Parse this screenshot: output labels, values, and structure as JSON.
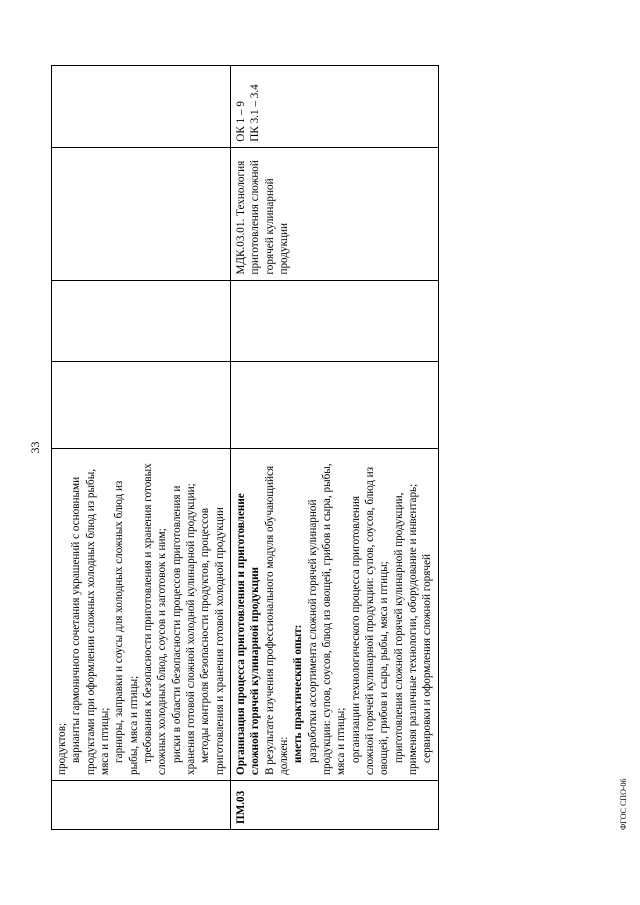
{
  "page_number": "33",
  "footer": "ФГОС СПО-06",
  "row1": {
    "col0": "",
    "col1_lines": [
      "продуктов;",
      "варианты гармоничного сочетания украшений с основными продуктами при оформлении сложных холодных блюд из рыбы, мяса и птицы;",
      "гарниры, заправки и соусы для холодных сложных блюд из рыбы, мяса и птицы;",
      "требования к безопасности приготовления и хранения готовых сложных холодных блюд, соусов и заготовок к ним;",
      "риски в области безопасности процессов приготовления и хранения готовой сложной холодной кулинарной продукции;",
      "методы контроля безопасности продуктов, процессов приготовления и хранения готовой холодной продукции"
    ],
    "col2": "",
    "col3": "",
    "col4": "",
    "col5": ""
  },
  "row2": {
    "col0": "ПМ.03",
    "col1_title": "Организация процесса приготовления и приготовление сложной горячей кулинарной продукции",
    "col1_intro": "В результате изучения профессионального модуля обучающийся должен:",
    "col1_label": "иметь практический опыт:",
    "col1_lines": [
      "разработки ассортимента сложной горячей кулинарной продукции: супов, соусов, блюд из овощей, грибов и сыра, рыбы, мяса и птицы;",
      "организации технологического процесса приготовления сложной горячей кулинарной продукции: супов, соусов, блюд из овощей, грибов и сыра, рыбы, мяса и птицы;",
      "приготовления сложной горячей кулинарной продукции, применяя различные технологии, оборудование и инвентарь;",
      "сервировки и оформления сложной горячей"
    ],
    "col2": "",
    "col3": "",
    "col4": "МДК.03.01. Технология приготовления сложной горячей кулинарной продукции",
    "col5": "ОК 1 – 9\nПК 3.1 – 3.4"
  }
}
